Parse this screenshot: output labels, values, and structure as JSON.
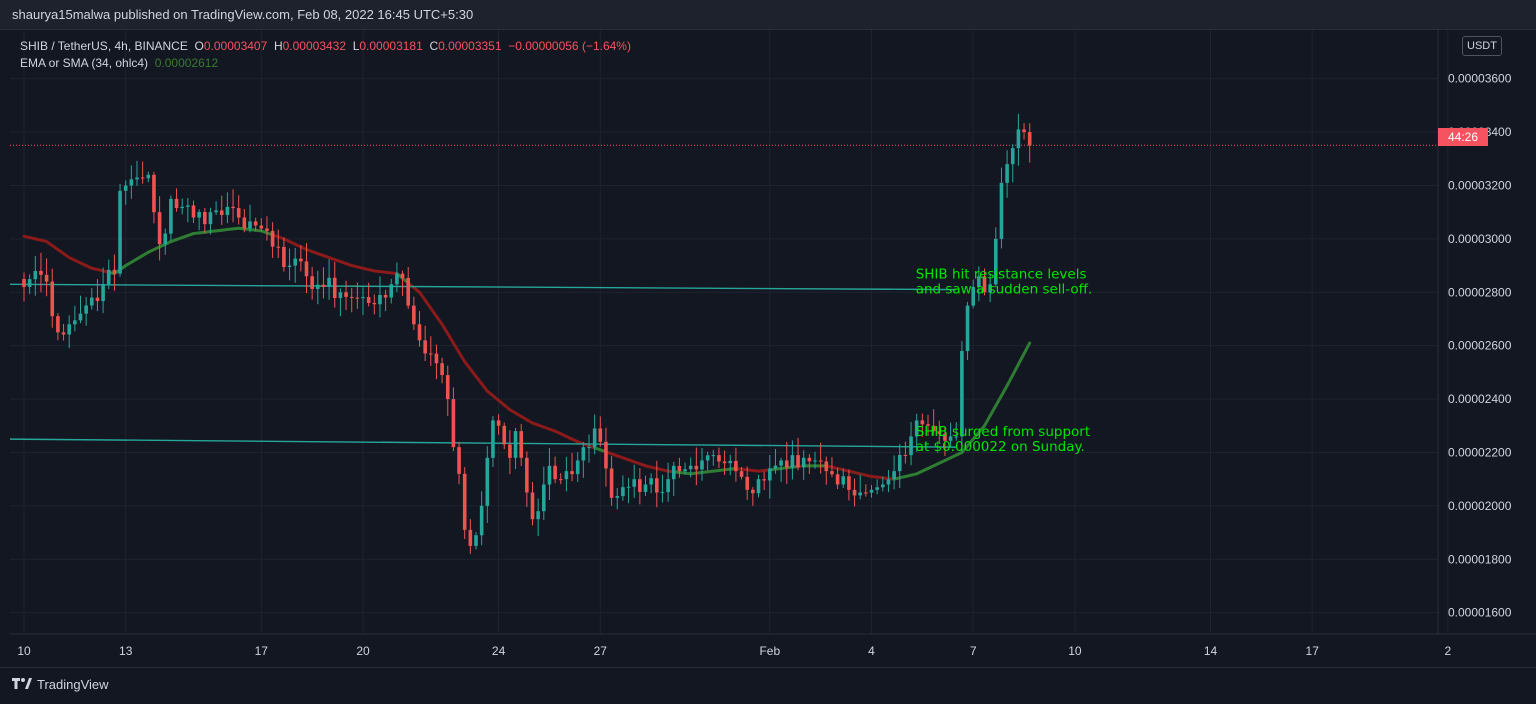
{
  "header": {
    "publish_line": "shaurya15malwa published on TradingView.com, Feb 08, 2022 16:45 UTC+5:30"
  },
  "legend": {
    "symbol": "SHIB / TetherUS, 4h, BINANCE",
    "o_label": "O",
    "o_value": "0.00003407",
    "h_label": "H",
    "h_value": "0.00003432",
    "l_label": "L",
    "l_value": "0.00003181",
    "c_label": "C",
    "c_value": "0.00003351",
    "change": "−0.00000056 (−1.64%)",
    "indicator": "EMA or SMA (34, ohlc4)",
    "indicator_value": "0.00002612"
  },
  "price_axis": {
    "currency": "USDT",
    "countdown": "44:26"
  },
  "footer": {
    "brand": "TradingView",
    "logo_icon": "tradingview-logo-icon"
  },
  "colors": {
    "up": "#26a69a",
    "down": "#ef5350",
    "ema_below": "#2e7d32",
    "ema_above": "#8b1a1a",
    "trendline": "#26a69a",
    "annotation": "#00e600",
    "price_line": "#f7525f"
  },
  "chart_data": {
    "type": "candlestick",
    "yunit": "USDT",
    "ylim": [
      1.52e-05,
      3.76e-05
    ],
    "yticks": [
      "0.00001600",
      "0.00001800",
      "0.00002000",
      "0.00002200",
      "0.00002400",
      "0.00002600",
      "0.00002800",
      "0.00003000",
      "0.00003200",
      "0.00003400",
      "0.00003600"
    ],
    "ytick_values": [
      1.6e-05,
      1.8e-05,
      2e-05,
      2.2e-05,
      2.4e-05,
      2.6e-05,
      2.8e-05,
      3e-05,
      3.2e-05,
      3.4e-05,
      3.6e-05
    ],
    "xticks": [
      {
        "label": "10",
        "bar": 0
      },
      {
        "label": "13",
        "bar": 18
      },
      {
        "label": "17",
        "bar": 42
      },
      {
        "label": "20",
        "bar": 60
      },
      {
        "label": "24",
        "bar": 84
      },
      {
        "label": "27",
        "bar": 102
      },
      {
        "label": "Feb",
        "bar": 132
      },
      {
        "label": "4",
        "bar": 150
      },
      {
        "label": "7",
        "bar": 168
      },
      {
        "label": "10",
        "bar": 186
      },
      {
        "label": "14",
        "bar": 210
      },
      {
        "label": "17",
        "bar": 228
      },
      {
        "label": "2",
        "bar": 252
      }
    ],
    "last_price": 3.351e-05,
    "grid": true,
    "anchors": [
      [
        0,
        2.82e-05
      ],
      [
        2,
        2.88e-05
      ],
      [
        4,
        2.84e-05
      ],
      [
        6,
        2.65e-05
      ],
      [
        8,
        2.68e-05
      ],
      [
        10,
        2.72e-05
      ],
      [
        12,
        2.78e-05
      ],
      [
        14,
        2.83e-05
      ],
      [
        16,
        2.87e-05
      ],
      [
        17,
        3.18e-05
      ],
      [
        18,
        3.2e-05
      ],
      [
        20,
        3.23e-05
      ],
      [
        22,
        3.24e-05
      ],
      [
        23,
        3.1e-05
      ],
      [
        24,
        2.98e-05
      ],
      [
        25,
        3.02e-05
      ],
      [
        26,
        3.15e-05
      ],
      [
        28,
        3.12e-05
      ],
      [
        30,
        3.08e-05
      ],
      [
        33,
        3.1e-05
      ],
      [
        36,
        3.12e-05
      ],
      [
        38,
        3.08e-05
      ],
      [
        41,
        3.05e-05
      ],
      [
        43,
        3.03e-05
      ],
      [
        45,
        2.97e-05
      ],
      [
        47,
        2.9e-05
      ],
      [
        50,
        2.86e-05
      ],
      [
        53,
        2.82e-05
      ],
      [
        56,
        2.8e-05
      ],
      [
        58,
        2.78e-05
      ],
      [
        61,
        2.76e-05
      ],
      [
        63,
        2.79e-05
      ],
      [
        65,
        2.83e-05
      ],
      [
        66,
        2.87e-05
      ],
      [
        68,
        2.75e-05
      ],
      [
        70,
        2.62e-05
      ],
      [
        72,
        2.57e-05
      ],
      [
        74,
        2.49e-05
      ],
      [
        75,
        2.4e-05
      ],
      [
        76,
        2.22e-05
      ],
      [
        77,
        2.12e-05
      ],
      [
        78,
        1.91e-05
      ],
      [
        79,
        1.85e-05
      ],
      [
        80,
        1.89e-05
      ],
      [
        81,
        2e-05
      ],
      [
        82,
        2.18e-05
      ],
      [
        83,
        2.32e-05
      ],
      [
        84,
        2.3e-05
      ],
      [
        85,
        2.23e-05
      ],
      [
        86,
        2.18e-05
      ],
      [
        87,
        2.28e-05
      ],
      [
        88,
        2.18e-05
      ],
      [
        89,
        2.05e-05
      ],
      [
        90,
        1.95e-05
      ],
      [
        91,
        1.98e-05
      ],
      [
        92,
        2.08e-05
      ],
      [
        93,
        2.15e-05
      ],
      [
        94,
        2.1e-05
      ],
      [
        96,
        2.13e-05
      ],
      [
        98,
        2.17e-05
      ],
      [
        100,
        2.22e-05
      ],
      [
        101,
        2.29e-05
      ],
      [
        102,
        2.24e-05
      ],
      [
        103,
        2.14e-05
      ],
      [
        104,
        2.03e-05
      ],
      [
        106,
        2.07e-05
      ],
      [
        108,
        2.1e-05
      ],
      [
        110,
        2.08e-05
      ],
      [
        112,
        2.05e-05
      ],
      [
        114,
        2.1e-05
      ],
      [
        116,
        2.13e-05
      ],
      [
        118,
        2.15e-05
      ],
      [
        120,
        2.17e-05
      ],
      [
        122,
        2.19e-05
      ],
      [
        124,
        2.16e-05
      ],
      [
        126,
        2.13e-05
      ],
      [
        128,
        2.06e-05
      ],
      [
        130,
        2.1e-05
      ],
      [
        132,
        2.14e-05
      ],
      [
        134,
        2.17e-05
      ],
      [
        136,
        2.19e-05
      ],
      [
        138,
        2.18e-05
      ],
      [
        140,
        2.17e-05
      ],
      [
        142,
        2.13e-05
      ],
      [
        144,
        2.08e-05
      ],
      [
        146,
        2.06e-05
      ],
      [
        148,
        2.05e-05
      ],
      [
        150,
        2.06e-05
      ],
      [
        152,
        2.08e-05
      ],
      [
        154,
        2.13e-05
      ],
      [
        156,
        2.19e-05
      ],
      [
        157,
        2.26e-05
      ],
      [
        158,
        2.32e-05
      ],
      [
        160,
        2.3e-05
      ],
      [
        162,
        2.27e-05
      ],
      [
        164,
        2.26e-05
      ],
      [
        165,
        2.26e-05
      ],
      [
        166,
        2.58e-05
      ],
      [
        167,
        2.75e-05
      ],
      [
        168,
        2.82e-05
      ],
      [
        169,
        2.86e-05
      ],
      [
        170,
        2.8e-05
      ],
      [
        171,
        2.83e-05
      ],
      [
        172,
        3e-05
      ],
      [
        173,
        3.21e-05
      ],
      [
        174,
        3.28e-05
      ],
      [
        175,
        3.34e-05
      ],
      [
        176,
        3.41e-05
      ],
      [
        177,
        3.4e-05
      ],
      [
        178,
        3.35e-05
      ]
    ],
    "ema_anchors": [
      [
        0,
        3.01e-05
      ],
      [
        4,
        2.99e-05
      ],
      [
        8,
        2.93e-05
      ],
      [
        12,
        2.89e-05
      ],
      [
        16,
        2.87e-05
      ],
      [
        18,
        2.9e-05
      ],
      [
        22,
        2.95e-05
      ],
      [
        26,
        2.99e-05
      ],
      [
        30,
        3.02e-05
      ],
      [
        34,
        3.03e-05
      ],
      [
        38,
        3.04e-05
      ],
      [
        42,
        3.03e-05
      ],
      [
        46,
        3e-05
      ],
      [
        50,
        2.96e-05
      ],
      [
        54,
        2.93e-05
      ],
      [
        58,
        2.9e-05
      ],
      [
        62,
        2.88e-05
      ],
      [
        66,
        2.87e-05
      ],
      [
        70,
        2.8e-05
      ],
      [
        74,
        2.68e-05
      ],
      [
        78,
        2.54e-05
      ],
      [
        82,
        2.43e-05
      ],
      [
        86,
        2.36e-05
      ],
      [
        90,
        2.31e-05
      ],
      [
        94,
        2.28e-05
      ],
      [
        98,
        2.24e-05
      ],
      [
        102,
        2.21e-05
      ],
      [
        106,
        2.18e-05
      ],
      [
        110,
        2.15e-05
      ],
      [
        114,
        2.13e-05
      ],
      [
        118,
        2.12e-05
      ],
      [
        122,
        2.13e-05
      ],
      [
        126,
        2.14e-05
      ],
      [
        130,
        2.13e-05
      ],
      [
        134,
        2.14e-05
      ],
      [
        138,
        2.15e-05
      ],
      [
        142,
        2.15e-05
      ],
      [
        146,
        2.13e-05
      ],
      [
        150,
        2.11e-05
      ],
      [
        154,
        2.1e-05
      ],
      [
        158,
        2.12e-05
      ],
      [
        162,
        2.16e-05
      ],
      [
        166,
        2.2e-05
      ],
      [
        170,
        2.3e-05
      ],
      [
        174,
        2.45e-05
      ],
      [
        178,
        2.61e-05
      ]
    ],
    "trendlines": [
      {
        "name": "resistance",
        "from": [
          0,
          2.83e-05
        ],
        "to": [
          165,
          2.81e-05
        ]
      },
      {
        "name": "support",
        "from": [
          0,
          2.25e-05
        ],
        "to": [
          165,
          2.22e-05
        ]
      }
    ],
    "annotations": [
      {
        "lines": [
          "SHIB hit resistance levels",
          "and saw a sudden sell-off."
        ],
        "bar": 158,
        "price": 2.83e-05
      },
      {
        "lines": [
          "SHIB surged from support",
          "at $0.000022 on Sunday."
        ],
        "bar": 158,
        "price": 2.24e-05
      }
    ]
  }
}
